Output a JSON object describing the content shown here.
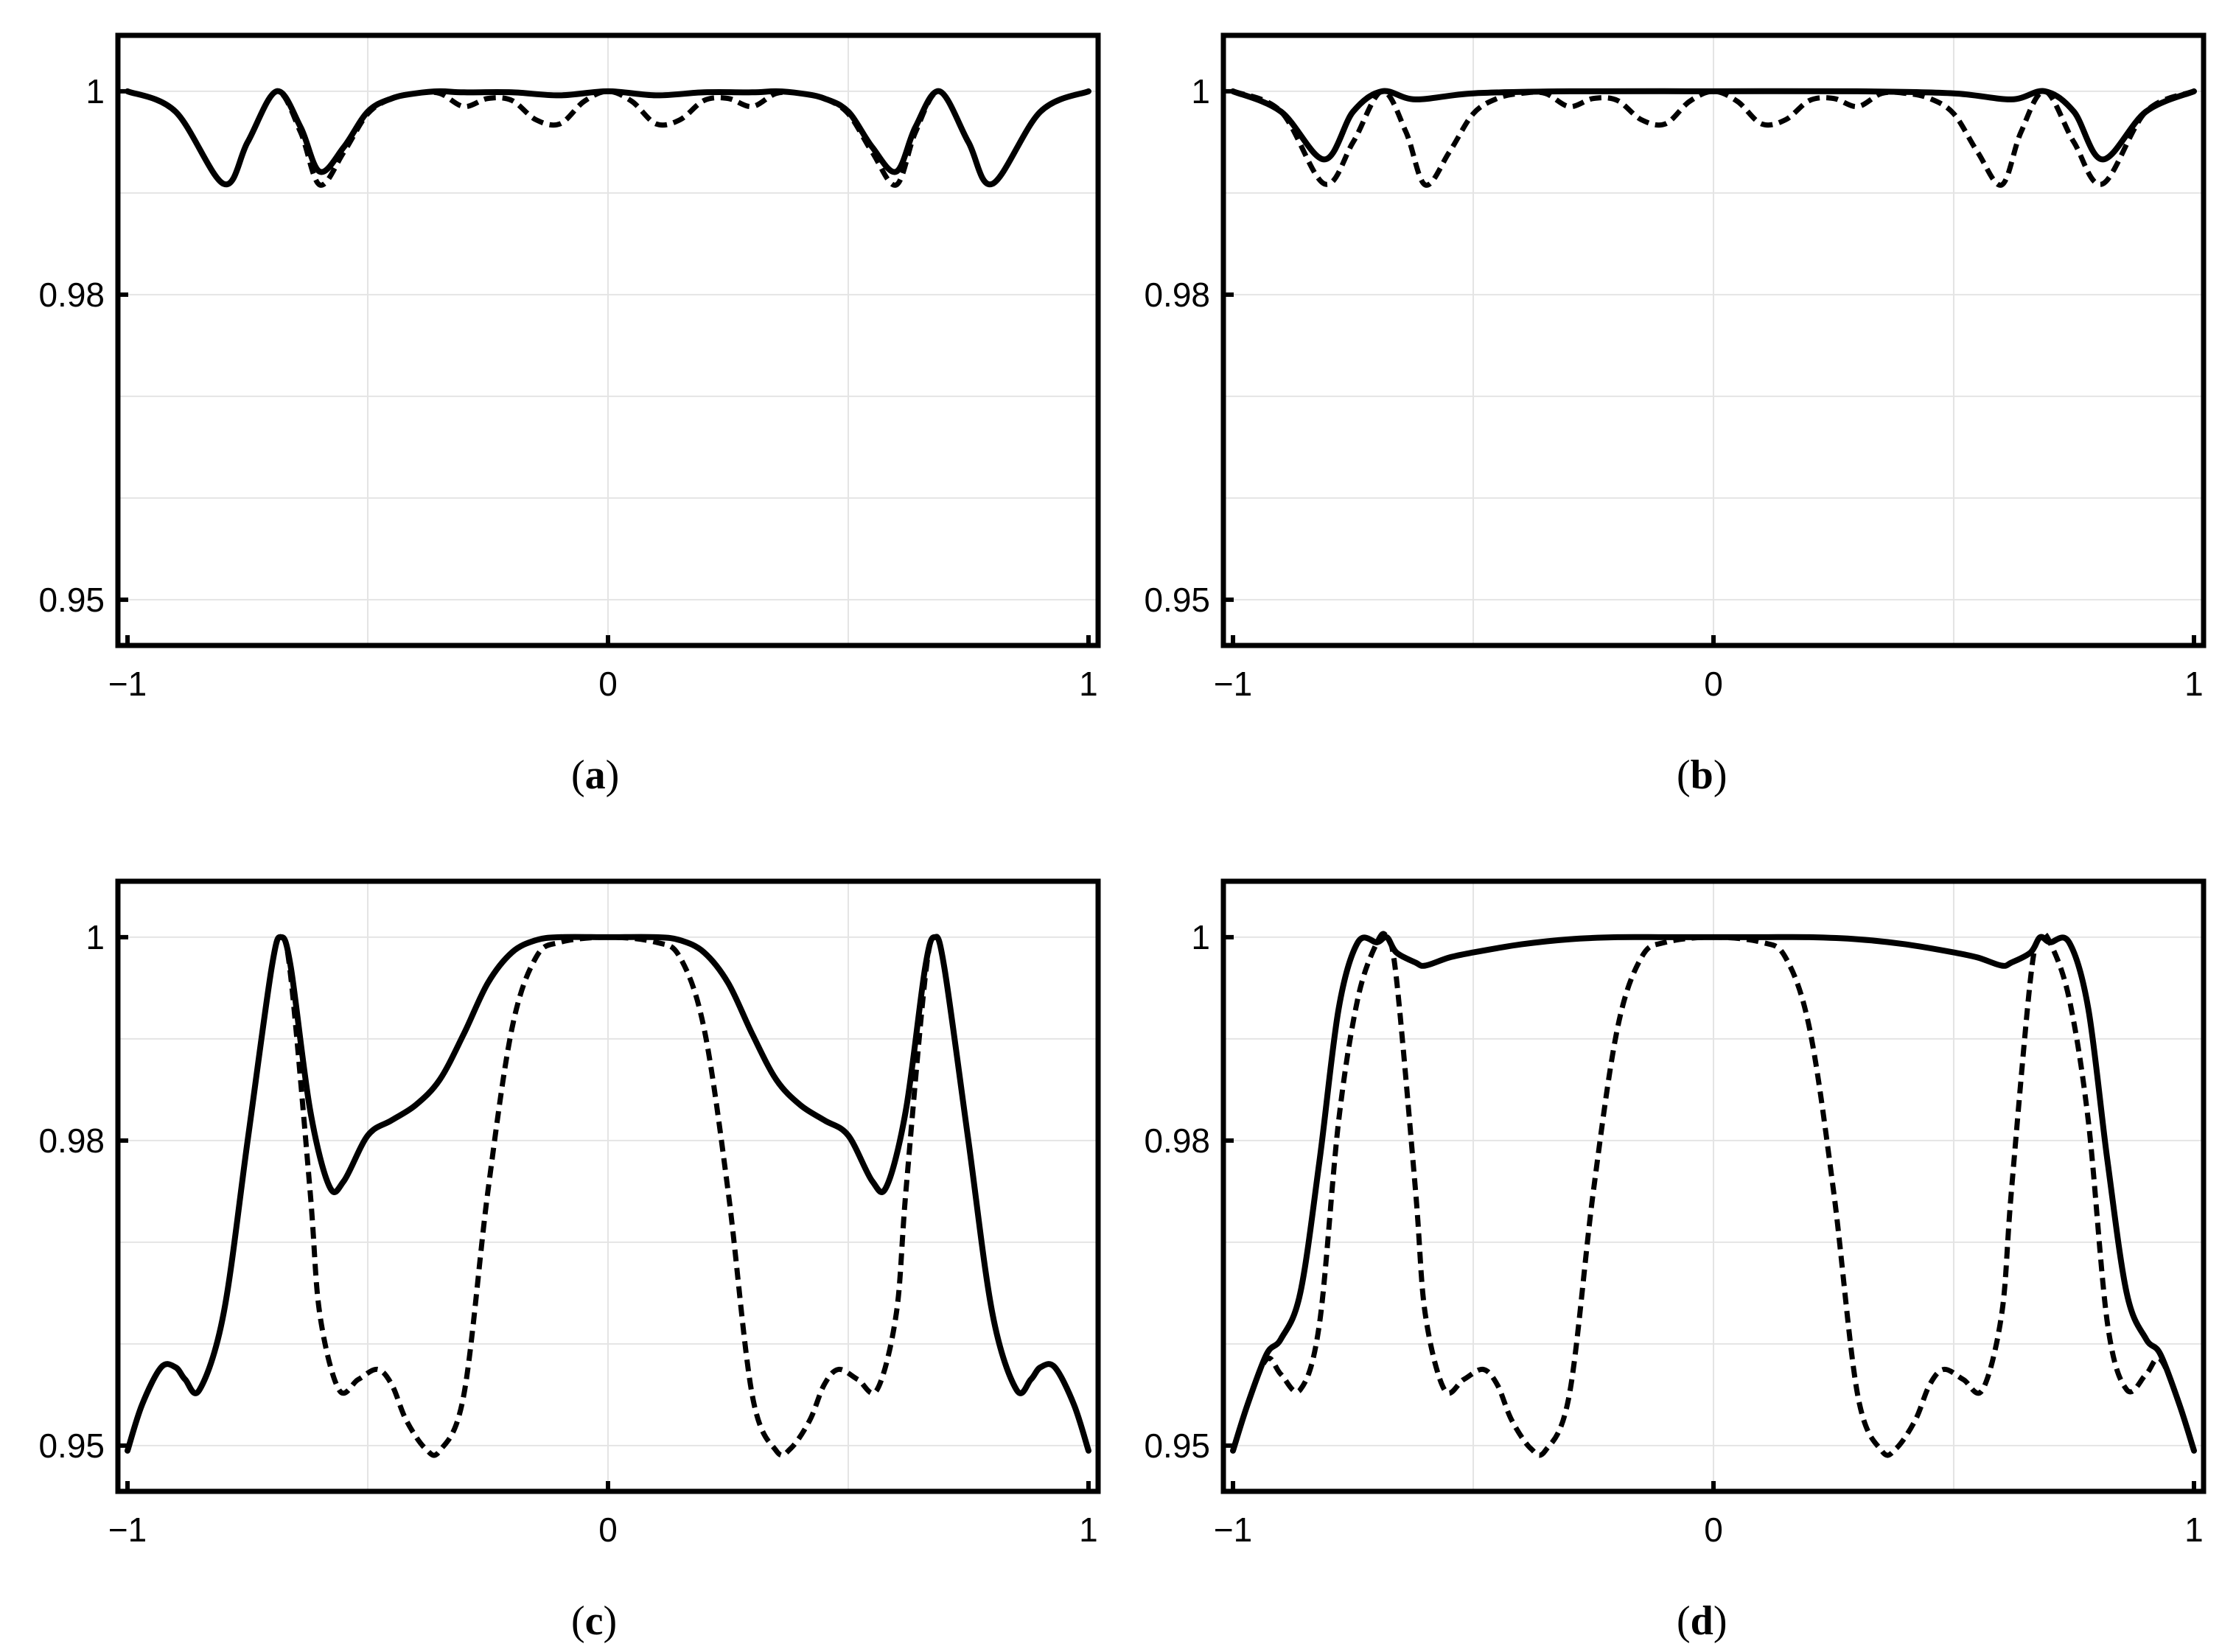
{
  "chart_data": [
    {
      "type": "line",
      "panel_label": "a",
      "xlim": [
        -1.02,
        1.02
      ],
      "ylim": [
        0.9455,
        1.0055
      ],
      "xticks": [
        -1,
        0,
        1
      ],
      "xtick_labels": [
        "−1",
        "0",
        "1"
      ],
      "yticks": [
        0.95,
        0.98,
        1
      ],
      "ytick_labels": [
        "0.95",
        "0.98",
        "1"
      ],
      "xgrid": [
        -0.5,
        0,
        0.5
      ],
      "ygrid": [
        0.95,
        0.96,
        0.97,
        0.98,
        0.99,
        1.0
      ],
      "series": [
        {
          "style": "solid",
          "x": [
            -1.0,
            -0.9,
            -0.8,
            -0.75,
            -0.69,
            -0.64,
            -0.6,
            -0.55,
            -0.5,
            -0.45,
            -0.4,
            -0.35,
            -0.3,
            -0.2,
            -0.1,
            0.0,
            0.1,
            0.2,
            0.3,
            0.35,
            0.4,
            0.45,
            0.5,
            0.55,
            0.6,
            0.64,
            0.69,
            0.75,
            0.8,
            0.9,
            1.0
          ],
          "y": [
            1.0,
            0.998,
            0.9909,
            0.995,
            1.0,
            0.9965,
            0.9921,
            0.9945,
            0.998,
            0.9993,
            0.9998,
            1.0,
            0.9999,
            0.9999,
            0.9996,
            1.0,
            0.9996,
            0.9999,
            0.9999,
            1.0,
            0.9998,
            0.9993,
            0.998,
            0.9945,
            0.9921,
            0.9965,
            1.0,
            0.995,
            0.9909,
            0.998,
            1.0
          ]
        },
        {
          "style": "dashed",
          "x": [
            -1.0,
            -0.9,
            -0.8,
            -0.75,
            -0.69,
            -0.64,
            -0.6,
            -0.55,
            -0.5,
            -0.45,
            -0.4,
            -0.35,
            -0.3,
            -0.25,
            -0.2,
            -0.15,
            -0.1,
            -0.05,
            0.0,
            0.05,
            0.1,
            0.15,
            0.2,
            0.25,
            0.3,
            0.35,
            0.4,
            0.45,
            0.5,
            0.55,
            0.6,
            0.64,
            0.69,
            0.75,
            0.8,
            0.9,
            1.0
          ],
          "y": [
            1.0,
            0.998,
            0.9909,
            0.995,
            1.0,
            0.996,
            0.9908,
            0.994,
            0.9978,
            0.9993,
            0.9998,
            0.9998,
            0.9985,
            0.9993,
            0.9991,
            0.9972,
            0.9968,
            0.999,
            1.0,
            0.999,
            0.9968,
            0.9972,
            0.9991,
            0.9993,
            0.9985,
            0.9998,
            0.9998,
            0.9993,
            0.9978,
            0.994,
            0.9908,
            0.996,
            1.0,
            0.995,
            0.9909,
            0.998,
            1.0
          ]
        }
      ]
    },
    {
      "type": "line",
      "panel_label": "b",
      "xlim": [
        -1.02,
        1.02
      ],
      "ylim": [
        0.9455,
        1.0055
      ],
      "xticks": [
        -1,
        0,
        1
      ],
      "xtick_labels": [
        "−1",
        "0",
        "1"
      ],
      "yticks": [
        0.95,
        0.98,
        1
      ],
      "ytick_labels": [
        "0.95",
        "0.98",
        "1"
      ],
      "xgrid": [
        -0.5,
        0,
        0.5
      ],
      "ygrid": [
        0.95,
        0.96,
        0.97,
        0.98,
        0.99,
        1.0
      ],
      "series": [
        {
          "style": "solid",
          "x": [
            -1.0,
            -0.9,
            -0.81,
            -0.75,
            -0.69,
            -0.62,
            -0.5,
            -0.3,
            0.0,
            0.3,
            0.5,
            0.62,
            0.69,
            0.75,
            0.81,
            0.9,
            1.0
          ],
          "y": [
            1.0,
            0.998,
            0.9933,
            0.998,
            1.0,
            0.9992,
            0.9998,
            1.0,
            1.0,
            1.0,
            0.9998,
            0.9992,
            1.0,
            0.998,
            0.9933,
            0.998,
            1.0
          ]
        },
        {
          "style": "dashed",
          "x": [
            -1.0,
            -0.9,
            -0.81,
            -0.75,
            -0.69,
            -0.64,
            -0.6,
            -0.55,
            -0.5,
            -0.45,
            -0.4,
            -0.35,
            -0.3,
            -0.25,
            -0.2,
            -0.15,
            -0.1,
            -0.05,
            0.0,
            0.05,
            0.1,
            0.15,
            0.2,
            0.25,
            0.3,
            0.35,
            0.4,
            0.45,
            0.5,
            0.55,
            0.6,
            0.64,
            0.69,
            0.75,
            0.81,
            0.9,
            1.0
          ],
          "y": [
            1.0,
            0.998,
            0.9909,
            0.995,
            1.0,
            0.996,
            0.9908,
            0.994,
            0.9978,
            0.9993,
            0.9998,
            0.9998,
            0.9985,
            0.9993,
            0.9991,
            0.9972,
            0.9968,
            0.999,
            1.0,
            0.999,
            0.9968,
            0.9972,
            0.9991,
            0.9993,
            0.9985,
            0.9998,
            0.9998,
            0.9993,
            0.9978,
            0.994,
            0.9908,
            0.996,
            1.0,
            0.995,
            0.9909,
            0.998,
            1.0
          ]
        }
      ]
    },
    {
      "type": "line",
      "panel_label": "c",
      "xlim": [
        -1.02,
        1.02
      ],
      "ylim": [
        0.9455,
        1.0055
      ],
      "xticks": [
        -1,
        0,
        1
      ],
      "xtick_labels": [
        "−1",
        "0",
        "1"
      ],
      "yticks": [
        0.95,
        0.98,
        1
      ],
      "ytick_labels": [
        "0.95",
        "0.98",
        "1"
      ],
      "xgrid": [
        -0.5,
        0,
        0.5
      ],
      "ygrid": [
        0.95,
        0.96,
        0.97,
        0.98,
        0.99,
        1.0
      ],
      "series": [
        {
          "style": "solid",
          "x": [
            -1.0,
            -0.97,
            -0.93,
            -0.9,
            -0.88,
            -0.85,
            -0.8,
            -0.75,
            -0.7,
            -0.68,
            -0.66,
            -0.62,
            -0.58,
            -0.55,
            -0.5,
            -0.45,
            -0.4,
            -0.35,
            -0.3,
            -0.25,
            -0.2,
            -0.15,
            -0.1,
            0.0,
            0.1,
            0.15,
            0.2,
            0.25,
            0.3,
            0.35,
            0.4,
            0.45,
            0.5,
            0.55,
            0.58,
            0.62,
            0.66,
            0.68,
            0.7,
            0.75,
            0.8,
            0.85,
            0.88,
            0.9,
            0.93,
            0.97,
            1.0
          ],
          "y": [
            0.9495,
            0.954,
            0.9577,
            0.9577,
            0.9565,
            0.9555,
            0.963,
            0.98,
            0.997,
            1.0,
            0.997,
            0.983,
            0.9755,
            0.976,
            0.9805,
            0.982,
            0.9835,
            0.986,
            0.9905,
            0.9955,
            0.9985,
            0.9997,
            1.0,
            1.0,
            1.0,
            0.9997,
            0.9985,
            0.9955,
            0.9905,
            0.986,
            0.9835,
            0.982,
            0.9805,
            0.976,
            0.9755,
            0.983,
            0.997,
            1.0,
            0.997,
            0.98,
            0.963,
            0.9555,
            0.9565,
            0.9577,
            0.9577,
            0.954,
            0.9495
          ]
        },
        {
          "style": "dashed",
          "x": [
            -1.0,
            -0.97,
            -0.93,
            -0.9,
            -0.88,
            -0.85,
            -0.8,
            -0.75,
            -0.7,
            -0.68,
            -0.66,
            -0.62,
            -0.6,
            -0.56,
            -0.52,
            -0.48,
            -0.45,
            -0.42,
            -0.38,
            -0.35,
            -0.3,
            -0.25,
            -0.2,
            -0.15,
            -0.1,
            0.0,
            0.1,
            0.15,
            0.2,
            0.25,
            0.3,
            0.35,
            0.38,
            0.42,
            0.45,
            0.48,
            0.52,
            0.56,
            0.6,
            0.62,
            0.66,
            0.68,
            0.7,
            0.75,
            0.8,
            0.85,
            0.88,
            0.9,
            0.93,
            0.97,
            1.0
          ],
          "y": [
            0.9495,
            0.954,
            0.9577,
            0.9577,
            0.9565,
            0.9555,
            0.963,
            0.98,
            0.997,
            1.0,
            0.996,
            0.975,
            0.963,
            0.9555,
            0.9565,
            0.9575,
            0.956,
            0.9525,
            0.9497,
            0.9495,
            0.955,
            0.975,
            0.991,
            0.998,
            0.9995,
            1.0,
            0.9995,
            0.998,
            0.991,
            0.975,
            0.955,
            0.9495,
            0.9497,
            0.9525,
            0.956,
            0.9575,
            0.9565,
            0.9555,
            0.963,
            0.975,
            0.996,
            1.0,
            0.997,
            0.98,
            0.963,
            0.9555,
            0.9565,
            0.9577,
            0.9577,
            0.954,
            0.9495
          ]
        }
      ]
    },
    {
      "type": "line",
      "panel_label": "d",
      "xlim": [
        -1.02,
        1.02
      ],
      "ylim": [
        0.9455,
        1.0055
      ],
      "xticks": [
        -1,
        0,
        1
      ],
      "xtick_labels": [
        "−1",
        "0",
        "1"
      ],
      "yticks": [
        0.95,
        0.98,
        1
      ],
      "ytick_labels": [
        "0.95",
        "0.98",
        "1"
      ],
      "xgrid": [
        -0.5,
        0,
        0.5
      ],
      "ygrid": [
        0.95,
        0.96,
        0.97,
        0.98,
        0.99,
        1.0
      ],
      "series": [
        {
          "style": "solid",
          "x": [
            -1.0,
            -0.97,
            -0.93,
            -0.9,
            -0.86,
            -0.82,
            -0.78,
            -0.74,
            -0.7,
            -0.68,
            -0.66,
            -0.62,
            -0.6,
            -0.55,
            -0.5,
            -0.4,
            -0.3,
            -0.2,
            -0.1,
            0.0,
            0.1,
            0.2,
            0.3,
            0.4,
            0.5,
            0.55,
            0.6,
            0.62,
            0.66,
            0.68,
            0.7,
            0.74,
            0.78,
            0.82,
            0.86,
            0.9,
            0.93,
            0.97,
            1.0
          ],
          "y": [
            0.9495,
            0.954,
            0.959,
            0.9605,
            0.965,
            0.978,
            0.993,
            0.9995,
            0.9995,
            1.0,
            0.9985,
            0.9975,
            0.9972,
            0.998,
            0.9985,
            0.9993,
            0.9998,
            1.0,
            1.0,
            1.0,
            1.0,
            1.0,
            0.9998,
            0.9993,
            0.9985,
            0.998,
            0.9972,
            0.9975,
            0.9985,
            1.0,
            0.9995,
            0.9995,
            0.993,
            0.978,
            0.965,
            0.9605,
            0.959,
            0.954,
            0.9495
          ]
        },
        {
          "style": "dashed",
          "x": [
            -1.0,
            -0.97,
            -0.93,
            -0.9,
            -0.86,
            -0.82,
            -0.78,
            -0.74,
            -0.7,
            -0.68,
            -0.66,
            -0.62,
            -0.6,
            -0.56,
            -0.52,
            -0.48,
            -0.45,
            -0.42,
            -0.38,
            -0.35,
            -0.3,
            -0.25,
            -0.2,
            -0.15,
            -0.1,
            0.0,
            0.1,
            0.15,
            0.2,
            0.25,
            0.3,
            0.35,
            0.38,
            0.42,
            0.45,
            0.48,
            0.52,
            0.56,
            0.6,
            0.62,
            0.66,
            0.68,
            0.7,
            0.74,
            0.78,
            0.82,
            0.86,
            0.9,
            0.93,
            0.97,
            1.0
          ],
          "y": [
            0.9495,
            0.954,
            0.9585,
            0.957,
            0.9555,
            0.962,
            0.982,
            0.994,
            0.9995,
            1.0,
            0.996,
            0.975,
            0.963,
            0.9555,
            0.9565,
            0.9575,
            0.956,
            0.9525,
            0.9497,
            0.9495,
            0.955,
            0.975,
            0.991,
            0.998,
            0.9995,
            1.0,
            0.9995,
            0.998,
            0.991,
            0.975,
            0.955,
            0.9495,
            0.9497,
            0.9525,
            0.956,
            0.9575,
            0.9565,
            0.9555,
            0.963,
            0.975,
            0.996,
            1.0,
            0.9995,
            0.994,
            0.982,
            0.962,
            0.9555,
            0.957,
            0.9585,
            0.954,
            0.9495
          ]
        }
      ]
    }
  ]
}
